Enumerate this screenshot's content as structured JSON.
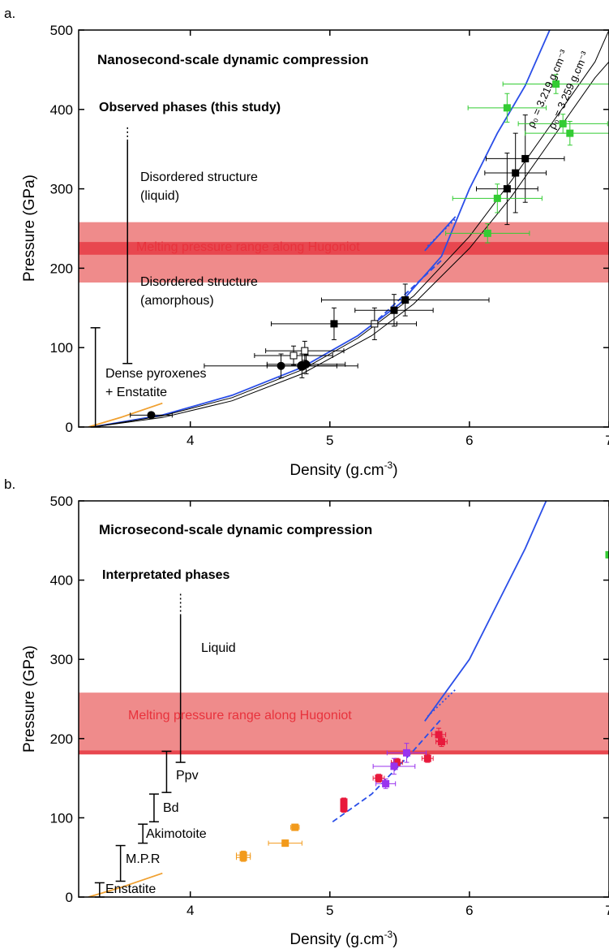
{
  "panel_labels": [
    "a.",
    "b."
  ],
  "colors": {
    "axis": "#000000",
    "melt_band": "#ef8b8b",
    "melt_line": "#e8474f",
    "melt_text": "#e8323c",
    "blue_curve": "#2a4ee8",
    "orange_curve": "#f0a030",
    "green_points": "#33cc33",
    "black_points": "#000000",
    "red_points": "#e8193c",
    "purple_points": "#9933ee",
    "orange_points": "#f29a1b"
  },
  "chart_data": [
    {
      "type": "scatter",
      "panel": "a.",
      "title": "Nanosecond-scale dynamic compression",
      "xlabel": "Density (g.cm",
      "xlabel_sup": "-3",
      "xlabel_end": ")",
      "ylabel": "Pressure (GPa)",
      "xlim": [
        3.2,
        7.0
      ],
      "ylim": [
        0,
        500
      ],
      "xticks": [
        4,
        5,
        6,
        7
      ],
      "xticklabels": [
        "4",
        "5",
        "6",
        "7"
      ],
      "yticks": [
        0,
        100,
        200,
        300,
        400,
        500
      ],
      "yticklabels": [
        "0",
        "100",
        "200",
        "300",
        "400",
        "500"
      ],
      "melt_band": [
        182,
        258
      ],
      "melt_band_inner": [
        217,
        233
      ],
      "melt_label": "Melting pressure range along Hugoniot",
      "phases_heading": "Observed phases (this study)",
      "phase_labels": [
        {
          "line1": "Disordered structure",
          "line2": "(liquid)"
        },
        {
          "line1": "Disordered structure",
          "line2": "(amorphous)"
        },
        {
          "line1": "Dense pyroxenes",
          "line2": "+ Enstatite"
        }
      ],
      "hugoniot_labels": [
        {
          "text": "ρ₀ = 3.219 g.cm⁻³"
        },
        {
          "text": "ρ₀ = 3.259 g.cm⁻³"
        }
      ],
      "curves": {
        "blue": {
          "x": [
            3.3,
            3.8,
            4.3,
            4.8,
            5.2,
            5.5,
            5.8,
            6.0,
            6.2,
            6.4,
            6.6
          ],
          "y": [
            0,
            15,
            40,
            75,
            115,
            155,
            215,
            300,
            370,
            430,
            510
          ]
        },
        "blue_upper": {
          "x": [
            5.68,
            5.9
          ],
          "y": [
            222,
            265
          ]
        },
        "blue_dash": {
          "x": [
            5.3,
            5.8
          ],
          "y": [
            128,
            210
          ]
        },
        "blue_dot": {
          "x": [
            5.7,
            5.9
          ],
          "y": [
            228,
            262
          ]
        },
        "black1": {
          "x": [
            3.3,
            3.8,
            4.3,
            4.8,
            5.2,
            5.6,
            6.0,
            6.3,
            6.6,
            6.9,
            7.0
          ],
          "y": [
            0,
            14,
            37,
            72,
            112,
            165,
            240,
            310,
            385,
            460,
            500
          ]
        },
        "black2": {
          "x": [
            3.3,
            3.8,
            4.3,
            4.8,
            5.3,
            5.6,
            6.0,
            6.3,
            6.6,
            6.9,
            7.0
          ],
          "y": [
            0,
            12,
            33,
            67,
            115,
            155,
            225,
            290,
            365,
            440,
            460
          ]
        },
        "orange": {
          "x": [
            3.27,
            3.5,
            3.8
          ],
          "y": [
            0,
            12,
            30
          ]
        }
      },
      "series": [
        {
          "marker": "circle-filled",
          "color": "black",
          "points": [
            {
              "x": 3.72,
              "y": 15,
              "xerr": 0.15,
              "yerr": 3,
              "r": 5
            },
            {
              "x": 4.65,
              "y": 77,
              "xerr": 0.55,
              "yerr": 15,
              "r": 5
            },
            {
              "x": 4.8,
              "y": 77,
              "xerr": 0.25,
              "yerr": 15,
              "r": 6
            },
            {
              "x": 4.83,
              "y": 79,
              "xerr": 0.28,
              "yerr": 12,
              "r": 5
            }
          ]
        },
        {
          "marker": "square-open",
          "color": "black",
          "points": [
            {
              "x": 4.74,
              "y": 90,
              "xerr": 0.28,
              "yerr": 12
            },
            {
              "x": 4.82,
              "y": 96,
              "xerr": 0.28,
              "yerr": 12
            },
            {
              "x": 5.32,
              "y": 130,
              "xerr": 0.3,
              "yerr": 20
            }
          ]
        },
        {
          "marker": "square-filled",
          "color": "black",
          "points": [
            {
              "x": 5.03,
              "y": 130,
              "xerr": 0.45,
              "yerr": 20
            },
            {
              "x": 5.46,
              "y": 147,
              "xerr": 0.28,
              "yerr": 20
            },
            {
              "x": 5.54,
              "y": 160,
              "xerr": 0.6,
              "yerr": 20
            },
            {
              "x": 6.27,
              "y": 300,
              "xerr": 0.22,
              "yerr": 45
            },
            {
              "x": 6.33,
              "y": 320,
              "xerr": 0.22,
              "yerr": 50
            },
            {
              "x": 6.4,
              "y": 338,
              "xerr": 0.28,
              "yerr": 55
            }
          ]
        },
        {
          "marker": "square-filled",
          "color": "green",
          "points": [
            {
              "x": 6.13,
              "y": 244,
              "xerr": 0.3,
              "yerr": 12
            },
            {
              "x": 6.2,
              "y": 288,
              "xerr": 0.32,
              "yerr": 18
            },
            {
              "x": 6.27,
              "y": 402,
              "xerr": 0.28,
              "yerr": 18
            },
            {
              "x": 6.62,
              "y": 432,
              "xerr": 0.38,
              "yerr": 12
            },
            {
              "x": 6.67,
              "y": 382,
              "xerr": 0.32,
              "yerr": 12
            },
            {
              "x": 6.72,
              "y": 370,
              "xerr": 0.32,
              "yerr": 15
            }
          ]
        }
      ],
      "phase_bars": [
        {
          "x": 3.55,
          "y_low": 80,
          "y_high": 360,
          "dotted_top": 380
        },
        {
          "x": 3.32,
          "y_low": 0,
          "y_high": 125
        }
      ]
    },
    {
      "type": "scatter",
      "panel": "b.",
      "title": "Microsecond-scale dynamic compression",
      "xlabel": "Density (g.cm",
      "xlabel_sup": "-3",
      "xlabel_end": ")",
      "ylabel": "Pressure (GPa)",
      "xlim": [
        3.2,
        7.0
      ],
      "ylim": [
        0,
        500
      ],
      "xticks": [
        4,
        5,
        6,
        7
      ],
      "xticklabels": [
        "4",
        "5",
        "6",
        "7"
      ],
      "yticks": [
        0,
        100,
        200,
        300,
        400,
        500
      ],
      "yticklabels": [
        "0",
        "100",
        "200",
        "300",
        "400",
        "500"
      ],
      "melt_band": [
        182,
        258
      ],
      "melt_band_inner": [
        180,
        185
      ],
      "melt_label": "Melting pressure range along Hugoniot",
      "phases_heading": "Interpretated phases",
      "phase_labels": [
        {
          "line1": "Liquid",
          "line2": ""
        },
        {
          "line1": "Ppv",
          "line2": ""
        },
        {
          "line1": "Bd",
          "line2": ""
        },
        {
          "line1": "Akimotoite",
          "line2": ""
        },
        {
          "line1": "M.P.R",
          "line2": ""
        },
        {
          "line1": "Enstatite",
          "line2": ""
        }
      ],
      "curves": {
        "blue": {
          "x": [
            5.68,
            6.0,
            6.2,
            6.4,
            6.5,
            6.65
          ],
          "y": [
            222,
            300,
            370,
            440,
            480,
            540
          ]
        },
        "blue_dash": {
          "x": [
            5.02,
            5.3,
            5.6,
            5.8
          ],
          "y": [
            95,
            130,
            185,
            225
          ]
        },
        "blue_dot": {
          "x": [
            5.7,
            5.9
          ],
          "y": [
            228,
            262
          ]
        },
        "orange": {
          "x": [
            3.27,
            3.5,
            3.8
          ],
          "y": [
            0,
            12,
            30
          ]
        }
      },
      "series": [
        {
          "marker": "square-filled",
          "color": "orange",
          "points": [
            {
              "x": 4.38,
              "y": 50,
              "xerr": 0.05,
              "yerr": 5
            },
            {
              "x": 4.38,
              "y": 53,
              "xerr": 0.05,
              "yerr": 5
            },
            {
              "x": 4.68,
              "y": 68,
              "xerr": 0.12,
              "yerr": 4
            },
            {
              "x": 4.75,
              "y": 88,
              "xerr": 0.03,
              "yerr": 4
            }
          ]
        },
        {
          "marker": "square-filled",
          "color": "red",
          "points": [
            {
              "x": 5.1,
              "y": 112,
              "xerr": 0.02,
              "yerr": 5
            },
            {
              "x": 5.1,
              "y": 120,
              "xerr": 0.02,
              "yerr": 5
            },
            {
              "x": 5.35,
              "y": 150,
              "xerr": 0.04,
              "yerr": 5
            },
            {
              "x": 5.48,
              "y": 170,
              "xerr": 0.04,
              "yerr": 5
            },
            {
              "x": 5.7,
              "y": 175,
              "xerr": 0.04,
              "yerr": 5
            },
            {
              "x": 5.78,
              "y": 205,
              "xerr": 0.05,
              "yerr": 8
            },
            {
              "x": 5.8,
              "y": 196,
              "xerr": 0.04,
              "yerr": 6
            }
          ]
        },
        {
          "marker": "square-filled",
          "color": "purple",
          "points": [
            {
              "x": 5.4,
              "y": 143,
              "xerr": 0.07,
              "yerr": 6
            },
            {
              "x": 5.46,
              "y": 165,
              "xerr": 0.15,
              "yerr": 10
            },
            {
              "x": 5.55,
              "y": 182,
              "xerr": 0.14,
              "yerr": 12
            }
          ]
        },
        {
          "marker": "square-filled",
          "color": "green",
          "points": [
            {
              "x": 7.0,
              "y": 432,
              "xerr": 0.02,
              "yerr": 4
            }
          ]
        }
      ],
      "phase_bars": [
        {
          "x": 3.93,
          "y_low": 170,
          "y_high": 355,
          "dotted_top": 385
        },
        {
          "x": 3.83,
          "y_low": 132,
          "y_high": 184
        },
        {
          "x": 3.74,
          "y_low": 95,
          "y_high": 130
        },
        {
          "x": 3.66,
          "y_low": 68,
          "y_high": 92
        },
        {
          "x": 3.5,
          "y_low": 20,
          "y_high": 65
        },
        {
          "x": 3.35,
          "y_low": 0,
          "y_high": 18
        }
      ]
    }
  ]
}
